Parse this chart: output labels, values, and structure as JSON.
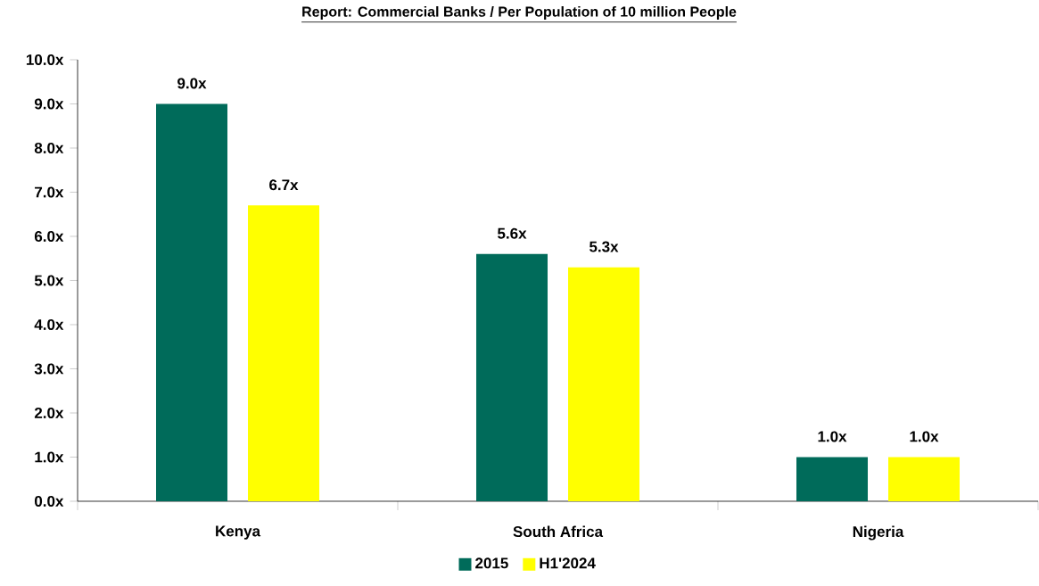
{
  "chart_data": {
    "type": "bar",
    "title": "Report: Commercial Banks / Per Population of 10 million People",
    "categories": [
      "Kenya",
      "South Africa",
      "Nigeria"
    ],
    "series": [
      {
        "name": "2015",
        "color": "#006b5a",
        "values": [
          9.0,
          5.6,
          1.0
        ],
        "value_labels": [
          "9.0x",
          "5.6x",
          "1.0x"
        ]
      },
      {
        "name": "H1'2024",
        "color": "#ffff00",
        "values": [
          6.7,
          5.3,
          1.0
        ],
        "value_labels": [
          "6.7x",
          "5.3x",
          "1.0x"
        ]
      }
    ],
    "ylim": [
      0,
      10
    ],
    "yticks": [
      {
        "value": 0,
        "label": "0.0x"
      },
      {
        "value": 1,
        "label": "1.0x"
      },
      {
        "value": 2,
        "label": "2.0x"
      },
      {
        "value": 3,
        "label": "3.0x"
      },
      {
        "value": 4,
        "label": "4.0x"
      },
      {
        "value": 5,
        "label": "5.0x"
      },
      {
        "value": 6,
        "label": "6.0x"
      },
      {
        "value": 7,
        "label": "7.0x"
      },
      {
        "value": 8,
        "label": "8.0x"
      },
      {
        "value": 9,
        "label": "9.0x"
      },
      {
        "value": 10,
        "label": "10.0x"
      }
    ],
    "grid": false,
    "legend": "bottom"
  }
}
